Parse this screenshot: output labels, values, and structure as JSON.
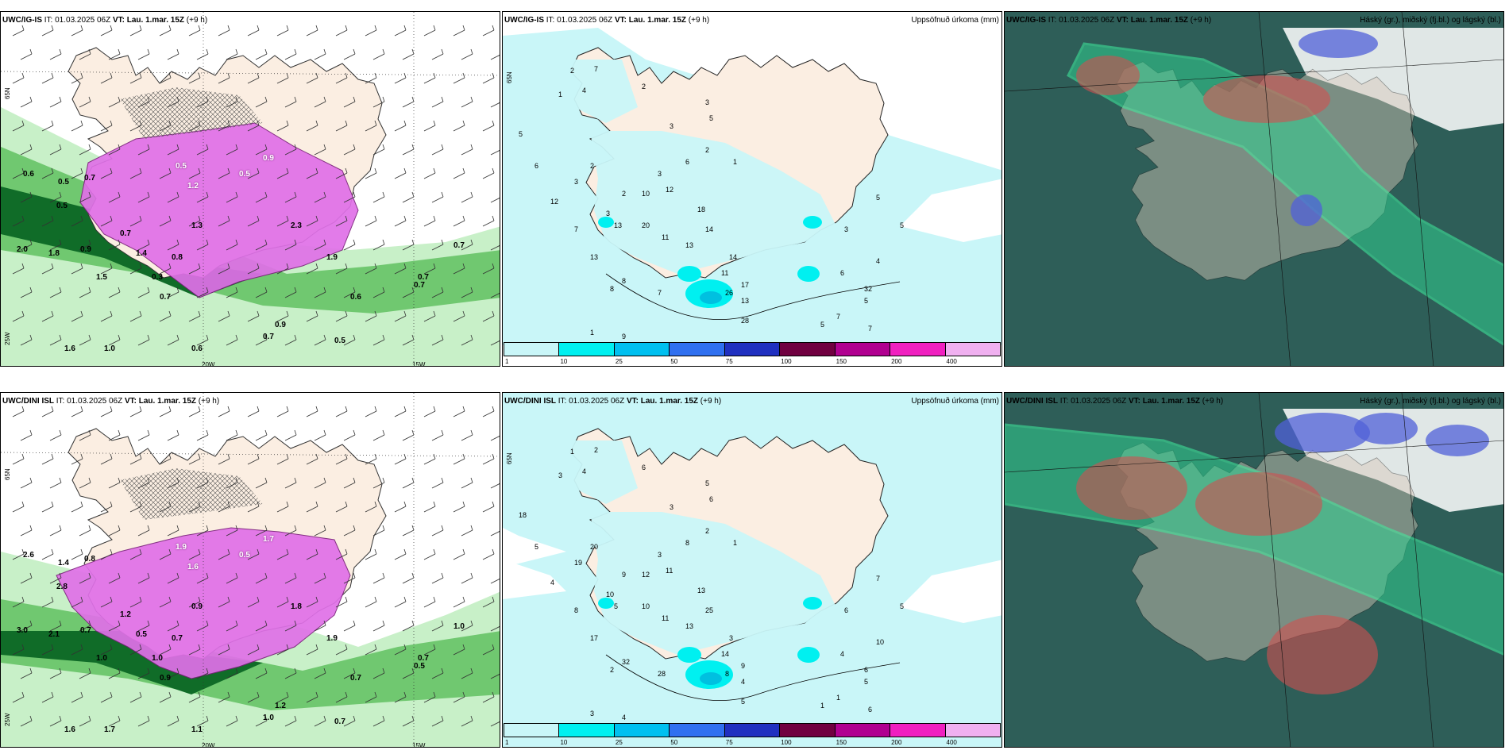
{
  "panels": [
    {
      "header_model": "UWC/IG-IS",
      "header_it": "IT: 01.03.2025 06Z",
      "header_vt_label": "VT:",
      "header_vt": "Lau. 1.mar. 15Z",
      "header_lead": "(+9 h)",
      "right_title": "",
      "axis_labels": [
        "65N",
        "20W",
        "15W",
        "25W"
      ],
      "labels": [
        "0.6",
        "0.5",
        "0.7",
        "1.2",
        "0.9",
        "0.5",
        "1.9",
        "2.3",
        "1.3",
        "0.8",
        "0.7",
        "0.5",
        "0.3",
        "1.4",
        "2.0",
        "1.8",
        "0.9",
        "1.5",
        "0.7",
        "0.6",
        "0.7",
        "0.9",
        "0.5",
        "0.6",
        "0.7",
        "0.7",
        "0.7",
        "0.5",
        "1.6",
        "1.0"
      ]
    },
    {
      "header_model": "UWC/IG-IS",
      "header_it": "IT: 01.03.2025 06Z",
      "header_vt_label": "VT:",
      "header_vt": "Lau. 1.mar. 15Z",
      "header_lead": "(+9 h)",
      "right_title": "Uppsöfnuð úrkoma (mm)",
      "axis_labels": [
        "65N"
      ],
      "labels": [
        "2",
        "7",
        "1",
        "4",
        "2",
        "3",
        "3",
        "5",
        "2",
        "1",
        "3",
        "13",
        "5",
        "3",
        "2",
        "10",
        "12",
        "18",
        "20",
        "11",
        "13",
        "14",
        "13",
        "8",
        "7",
        "11",
        "14",
        "13",
        "26",
        "17",
        "28",
        "32",
        "5",
        "6",
        "7",
        "5",
        "7",
        "6",
        "12",
        "7",
        "8",
        "1",
        "9",
        "5",
        "4",
        "3",
        "5",
        "6",
        "2",
        "3"
      ],
      "colorbar": [
        "1",
        "10",
        "25",
        "50",
        "75",
        "100",
        "150",
        "200",
        "400"
      ]
    },
    {
      "header_model": "UWC/IG-IS",
      "header_it": "IT: 01.03.2025 06Z",
      "header_vt_label": "VT:",
      "header_vt": "Lau. 1.mar. 15Z",
      "header_lead": "(+9 h)",
      "right_title": "Háský (gr.), miðský (fj.bl.) og lágský (bl.)"
    },
    {
      "header_model": "UWC/DINI ISL",
      "header_it": "IT: 01.03.2025 06Z",
      "header_vt_label": "VT:",
      "header_vt": "Lau. 1.mar. 15Z",
      "header_lead": "(+9 h)",
      "right_title": "",
      "axis_labels": [
        "65N",
        "20W",
        "15W",
        "25W"
      ],
      "labels": [
        "2.6",
        "1.4",
        "0.8",
        "1.6",
        "1.7",
        "0.5",
        "1.9",
        "1.8",
        "0.9",
        "0.7",
        "1.2",
        "2.8",
        "1.0",
        "0.5",
        "3.0",
        "2.1",
        "0.7",
        "1.0",
        "0.9",
        "1.1",
        "1.0",
        "1.2",
        "0.7",
        "0.7",
        "1.0",
        "0.7",
        "0.5",
        "1.9",
        "1.6",
        "1.7"
      ]
    },
    {
      "header_model": "UWC/DINI ISL",
      "header_it": "IT: 01.03.2025 06Z",
      "header_vt_label": "VT:",
      "header_vt": "Lau. 1.mar. 15Z",
      "header_lead": "(+9 h)",
      "right_title": "Uppsöfnuð úrkoma (mm)",
      "axis_labels": [
        "65N"
      ],
      "labels": [
        "1",
        "2",
        "3",
        "4",
        "6",
        "3",
        "5",
        "6",
        "2",
        "1",
        "3",
        "5",
        "18",
        "19",
        "20",
        "12",
        "11",
        "13",
        "10",
        "11",
        "13",
        "25",
        "17",
        "32",
        "28",
        "14",
        "3",
        "4",
        "8",
        "9",
        "5",
        "6",
        "5",
        "4",
        "1",
        "1",
        "6",
        "5",
        "4",
        "8",
        "2",
        "3",
        "4",
        "5",
        "10",
        "6",
        "7",
        "8",
        "9",
        "10"
      ],
      "colorbar": [
        "1",
        "10",
        "25",
        "50",
        "75",
        "100",
        "150",
        "200",
        "400"
      ]
    },
    {
      "header_model": "UWC/DINI ISL",
      "header_it": "IT: 01.03.2025 06Z",
      "header_vt_label": "VT:",
      "header_vt": "Lau. 1.mar. 15Z",
      "header_lead": "(+9 h)",
      "right_title": "Háský (gr.), miðský (fj.bl.) og lágský (bl.)"
    }
  ],
  "colors": {
    "land": "#fbeee2",
    "precip_light": "#c9f6f8",
    "precip_mid": "#00f0f0",
    "precip_dark": "#00c0e0",
    "pink": "#e070e8",
    "green_light": "#c8f0c8",
    "green_mid": "#70c870",
    "green_dark": "#106c28",
    "cloud_base": "#2e5e58",
    "cloud_teal": "#30d090",
    "cloud_blue": "#5060d8",
    "cloud_red": "#d05050",
    "colorbar": [
      "#c9f6f8",
      "#00f0f0",
      "#00c0f0",
      "#3070f0",
      "#2030c0",
      "#700040",
      "#b00090",
      "#f020c0",
      "#f0b0f0"
    ]
  }
}
